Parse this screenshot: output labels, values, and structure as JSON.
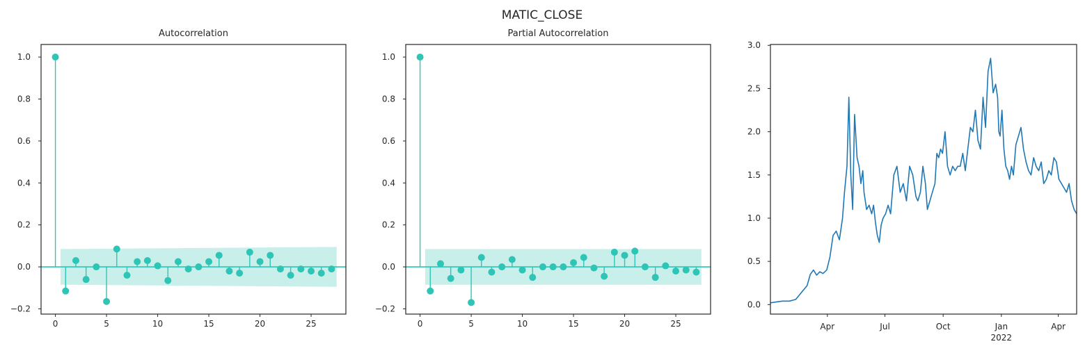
{
  "figure": {
    "suptitle": "MATIC_CLOSE"
  },
  "colors": {
    "stem": "#2ec4b6",
    "band": "#c9efeb",
    "series": "#1f77b4",
    "axis": "#262626"
  },
  "chart_data": [
    {
      "type": "stem",
      "title": "Autocorrelation",
      "xlabel": "",
      "ylabel": "",
      "xlim": [
        -1.4,
        28.4
      ],
      "ylim": [
        -0.225,
        1.06
      ],
      "xticks": [
        0,
        5,
        10,
        15,
        20,
        25
      ],
      "yticks": [
        -0.2,
        0.0,
        0.2,
        0.4,
        0.6,
        0.8,
        1.0
      ],
      "ytick_labels": [
        "−0.2",
        "0.0",
        "0.2",
        "0.4",
        "0.6",
        "0.8",
        "1.0"
      ],
      "confidence_band": {
        "x_start": 0.5,
        "x_end": 27.5,
        "lower": [
          -0.085,
          -0.095
        ],
        "upper": [
          0.085,
          0.095
        ]
      },
      "lags": [
        0,
        1,
        2,
        3,
        4,
        5,
        6,
        7,
        8,
        9,
        10,
        11,
        12,
        13,
        14,
        15,
        16,
        17,
        18,
        19,
        20,
        21,
        22,
        23,
        24,
        25,
        26,
        27
      ],
      "values": [
        1.0,
        -0.115,
        0.03,
        -0.06,
        0.0,
        -0.165,
        0.085,
        -0.04,
        0.025,
        0.03,
        0.005,
        -0.065,
        0.025,
        -0.01,
        0.0,
        0.025,
        0.055,
        -0.02,
        -0.03,
        0.07,
        0.025,
        0.055,
        -0.01,
        -0.04,
        -0.01,
        -0.02,
        -0.03,
        -0.01
      ]
    },
    {
      "type": "stem",
      "title": "Partial Autocorrelation",
      "xlabel": "",
      "ylabel": "",
      "xlim": [
        -1.4,
        28.4
      ],
      "ylim": [
        -0.225,
        1.06
      ],
      "xticks": [
        0,
        5,
        10,
        15,
        20,
        25
      ],
      "yticks": [
        -0.2,
        0.0,
        0.2,
        0.4,
        0.6,
        0.8,
        1.0
      ],
      "ytick_labels": [
        "−0.2",
        "0.0",
        "0.2",
        "0.4",
        "0.6",
        "0.8",
        "1.0"
      ],
      "confidence_band": {
        "x_start": 0.5,
        "x_end": 27.5,
        "lower": [
          -0.085,
          -0.085
        ],
        "upper": [
          0.085,
          0.085
        ]
      },
      "lags": [
        0,
        1,
        2,
        3,
        4,
        5,
        6,
        7,
        8,
        9,
        10,
        11,
        12,
        13,
        14,
        15,
        16,
        17,
        18,
        19,
        20,
        21,
        22,
        23,
        24,
        25,
        26,
        27
      ],
      "values": [
        1.0,
        -0.115,
        0.015,
        -0.055,
        -0.015,
        -0.17,
        0.045,
        -0.025,
        0.0,
        0.035,
        -0.015,
        -0.05,
        0.0,
        0.0,
        0.0,
        0.02,
        0.045,
        -0.005,
        -0.045,
        0.07,
        0.055,
        0.075,
        0.0,
        -0.05,
        0.005,
        -0.02,
        -0.015,
        -0.025
      ]
    },
    {
      "type": "line",
      "title": "",
      "xlabel": "",
      "ylabel": "",
      "x_range": [
        "2021-01-01",
        "2022-04-30"
      ],
      "ylim": [
        -0.11,
        3.01
      ],
      "xticks": [
        {
          "date": "2021-04-01",
          "label": "Apr",
          "sublabel": ""
        },
        {
          "date": "2021-07-01",
          "label": "Jul",
          "sublabel": ""
        },
        {
          "date": "2021-10-01",
          "label": "Oct",
          "sublabel": ""
        },
        {
          "date": "2022-01-01",
          "label": "Jan",
          "sublabel": "2022"
        },
        {
          "date": "2022-04-01",
          "label": "Apr",
          "sublabel": ""
        }
      ],
      "yticks": [
        0.0,
        0.5,
        1.0,
        1.5,
        2.0,
        2.5,
        3.0
      ],
      "ytick_labels": [
        "0.0",
        "0.5",
        "1.0",
        "1.5",
        "2.0",
        "2.5",
        "3.0"
      ],
      "series": [
        {
          "x": [
            "2021-01-01",
            "2021-01-10",
            "2021-01-20",
            "2021-01-31",
            "2021-02-10",
            "2021-02-20",
            "2021-02-28",
            "2021-03-05",
            "2021-03-10",
            "2021-03-15",
            "2021-03-20",
            "2021-03-25",
            "2021-03-31",
            "2021-04-05",
            "2021-04-10",
            "2021-04-15",
            "2021-04-20",
            "2021-04-25",
            "2021-04-28",
            "2021-05-02",
            "2021-05-05",
            "2021-05-08",
            "2021-05-11",
            "2021-05-14",
            "2021-05-18",
            "2021-05-21",
            "2021-05-24",
            "2021-05-27",
            "2021-05-29",
            "2021-06-02",
            "2021-06-06",
            "2021-06-10",
            "2021-06-13",
            "2021-06-16",
            "2021-06-19",
            "2021-06-22",
            "2021-06-25",
            "2021-06-28",
            "2021-07-02",
            "2021-07-06",
            "2021-07-10",
            "2021-07-15",
            "2021-07-20",
            "2021-07-25",
            "2021-07-30",
            "2021-08-04",
            "2021-08-09",
            "2021-08-14",
            "2021-08-19",
            "2021-08-22",
            "2021-08-26",
            "2021-08-30",
            "2021-09-03",
            "2021-09-06",
            "2021-09-10",
            "2021-09-14",
            "2021-09-18",
            "2021-09-21",
            "2021-09-24",
            "2021-09-27",
            "2021-09-30",
            "2021-10-04",
            "2021-10-08",
            "2021-10-12",
            "2021-10-16",
            "2021-10-20",
            "2021-10-24",
            "2021-10-28",
            "2021-11-01",
            "2021-11-05",
            "2021-11-09",
            "2021-11-13",
            "2021-11-17",
            "2021-11-21",
            "2021-11-25",
            "2021-11-29",
            "2021-12-03",
            "2021-12-07",
            "2021-12-11",
            "2021-12-15",
            "2021-12-19",
            "2021-12-23",
            "2021-12-26",
            "2021-12-28",
            "2021-12-30",
            "2022-01-02",
            "2022-01-05",
            "2022-01-08",
            "2022-01-11",
            "2022-01-14",
            "2022-01-17",
            "2022-01-20",
            "2022-01-24",
            "2022-01-28",
            "2022-02-01",
            "2022-02-05",
            "2022-02-09",
            "2022-02-13",
            "2022-02-17",
            "2022-02-21",
            "2022-02-25",
            "2022-03-01",
            "2022-03-05",
            "2022-03-09",
            "2022-03-13",
            "2022-03-17",
            "2022-03-21",
            "2022-03-25",
            "2022-03-29",
            "2022-04-02",
            "2022-04-06",
            "2022-04-10",
            "2022-04-14",
            "2022-04-18",
            "2022-04-22",
            "2022-04-26",
            "2022-04-30"
          ],
          "y": [
            0.02,
            0.03,
            0.04,
            0.04,
            0.06,
            0.15,
            0.22,
            0.35,
            0.4,
            0.34,
            0.38,
            0.36,
            0.4,
            0.55,
            0.8,
            0.85,
            0.75,
            1.0,
            1.3,
            1.6,
            2.4,
            1.5,
            1.1,
            2.2,
            1.7,
            1.6,
            1.4,
            1.55,
            1.3,
            1.1,
            1.15,
            1.05,
            1.15,
            0.95,
            0.8,
            0.72,
            0.92,
            1.0,
            1.05,
            1.15,
            1.05,
            1.5,
            1.6,
            1.3,
            1.4,
            1.2,
            1.6,
            1.5,
            1.25,
            1.2,
            1.3,
            1.6,
            1.4,
            1.1,
            1.2,
            1.3,
            1.4,
            1.75,
            1.7,
            1.8,
            1.75,
            2.0,
            1.6,
            1.5,
            1.6,
            1.55,
            1.6,
            1.6,
            1.75,
            1.55,
            1.8,
            2.05,
            2.0,
            2.25,
            1.9,
            1.8,
            2.4,
            2.05,
            2.7,
            2.85,
            2.45,
            2.55,
            2.4,
            2.0,
            1.95,
            2.25,
            1.8,
            1.6,
            1.55,
            1.45,
            1.6,
            1.5,
            1.85,
            1.95,
            2.05,
            1.8,
            1.65,
            1.55,
            1.5,
            1.7,
            1.6,
            1.55,
            1.65,
            1.4,
            1.45,
            1.55,
            1.5,
            1.7,
            1.65,
            1.45,
            1.4,
            1.35,
            1.3,
            1.4,
            1.2,
            1.1,
            1.05
          ]
        }
      ]
    }
  ]
}
